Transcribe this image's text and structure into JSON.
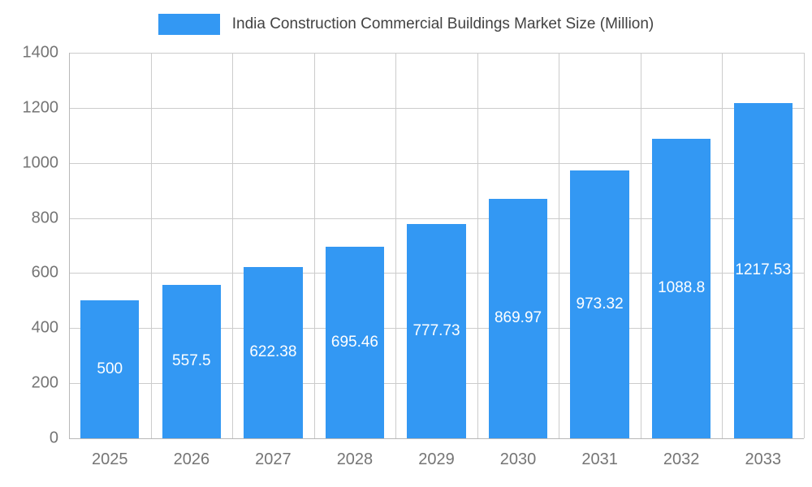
{
  "chart_data": {
    "type": "bar",
    "title": "India Construction Commercial Buildings Market Size (Million)",
    "categories": [
      "2025",
      "2026",
      "2027",
      "2028",
      "2029",
      "2030",
      "2031",
      "2032",
      "2033"
    ],
    "values": [
      500,
      557.5,
      622.38,
      695.46,
      777.73,
      869.97,
      973.32,
      1088.8,
      1217.53
    ],
    "value_labels": [
      "500",
      "557.5",
      "622.38",
      "695.46",
      "777.73",
      "869.97",
      "973.32",
      "1088.8",
      "1217.53"
    ],
    "xlabel": "",
    "ylabel": "",
    "ylim": [
      0,
      1400
    ],
    "ytick_step": 200,
    "ytick_labels": [
      "0",
      "200",
      "400",
      "600",
      "800",
      "1000",
      "1200",
      "1400"
    ],
    "grid": true,
    "legend_position": "top",
    "colors": {
      "bar": "#3398f3",
      "grid": "#cccccc",
      "axis_line": "#b8b8b8",
      "axis_text": "#757575",
      "title_text": "#424242",
      "bar_label_text": "#ffffff",
      "background": "#ffffff"
    }
  }
}
